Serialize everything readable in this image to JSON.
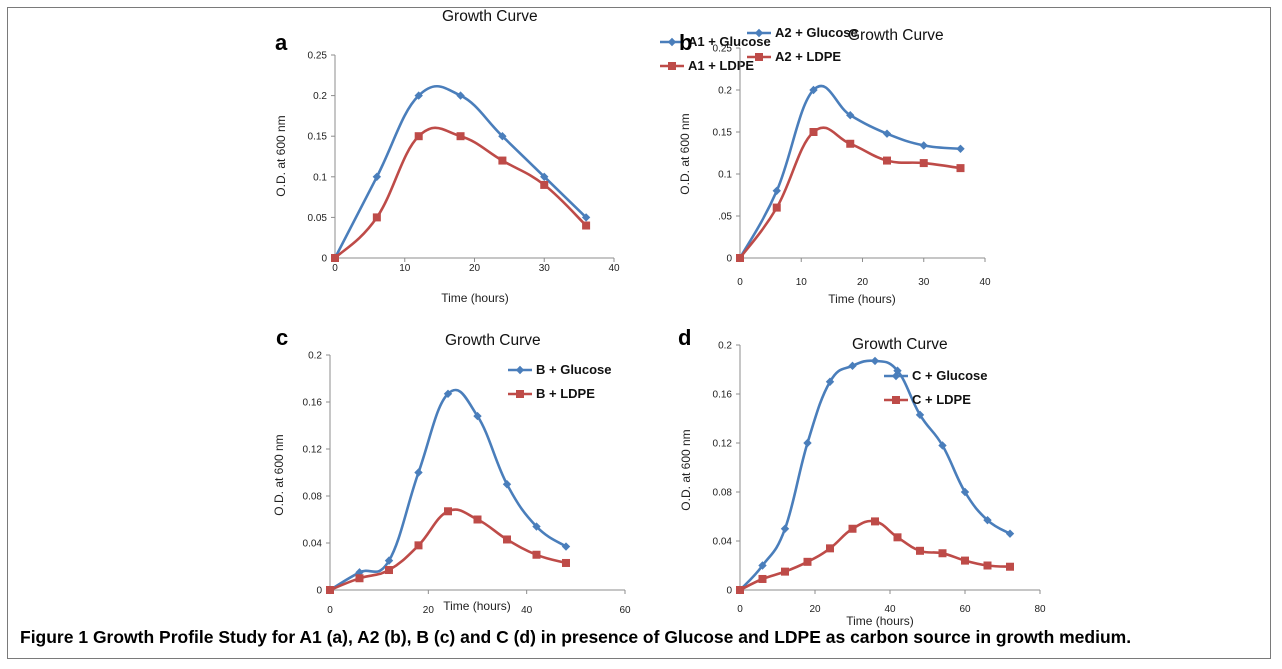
{
  "caption": {
    "label": "Figure 1",
    "text": " Growth Profile Study for A1 (a), A2 (b), B (c) and C (d) in presence of Glucose and LDPE as carbon source in growth medium."
  },
  "colors": {
    "glucose": "#4a7ebb",
    "ldpe": "#be4b48",
    "axis": "#8c8c8c"
  },
  "chart_data": [
    {
      "panel": "a",
      "type": "line",
      "title": "Growth Curve",
      "xlabel": "Time (hours)",
      "ylabel": "O.D. at 600 nm",
      "xlim": [
        0,
        40
      ],
      "ylim": [
        0,
        0.25
      ],
      "xticks": [
        0,
        10,
        20,
        30,
        40
      ],
      "xtick_labels": [
        "0",
        "10",
        "20",
        "30",
        "40"
      ],
      "yticks": [
        0,
        0.05,
        0.1,
        0.15,
        0.2,
        0.25
      ],
      "ytick_labels": [
        "0",
        "0.05",
        "0.1",
        "0.15",
        "0.2",
        "0.25"
      ],
      "legend": "top-right",
      "series": [
        {
          "name": "A1 + Glucose",
          "marker": "diamond",
          "x": [
            0,
            6,
            12,
            18,
            24,
            30,
            36
          ],
          "values": [
            0,
            0.1,
            0.2,
            0.2,
            0.15,
            0.1,
            0.05
          ]
        },
        {
          "name": "A1 + LDPE",
          "marker": "square",
          "x": [
            0,
            6,
            12,
            18,
            24,
            30,
            36
          ],
          "values": [
            0,
            0.05,
            0.15,
            0.15,
            0.12,
            0.09,
            0.04
          ]
        }
      ]
    },
    {
      "panel": "b",
      "type": "line",
      "title": "Growth Curve",
      "xlabel": "Time (hours)",
      "ylabel": "O.D. at 600 nm",
      "xlim": [
        0,
        40
      ],
      "ylim": [
        0,
        0.25
      ],
      "xticks": [
        0,
        10,
        20,
        30,
        40
      ],
      "xtick_labels": [
        "0",
        "10",
        "20",
        "30",
        "40"
      ],
      "yticks": [
        0,
        0.05,
        0.1,
        0.15,
        0.2,
        0.25
      ],
      "ytick_labels": [
        "0",
        ".05",
        "0.1",
        "0.15",
        "0.2",
        "0.25"
      ],
      "legend": "top-right",
      "series": [
        {
          "name": "A2 + Glucose",
          "marker": "diamond",
          "x": [
            0,
            6,
            12,
            18,
            24,
            30,
            36
          ],
          "values": [
            0,
            0.08,
            0.2,
            0.17,
            0.148,
            0.134,
            0.13
          ]
        },
        {
          "name": "A2 + LDPE",
          "marker": "square",
          "x": [
            0,
            6,
            12,
            18,
            24,
            30,
            36
          ],
          "values": [
            0,
            0.06,
            0.15,
            0.136,
            0.116,
            0.113,
            0.107
          ]
        }
      ]
    },
    {
      "panel": "c",
      "type": "line",
      "title": "Growth Curve",
      "xlabel": "Time (hours)",
      "ylabel": "O.D. at 600 nm",
      "xlim": [
        0,
        60
      ],
      "ylim": [
        0,
        0.2
      ],
      "xticks": [
        0,
        20,
        40,
        60
      ],
      "xtick_labels": [
        "0",
        "20",
        "40",
        "60"
      ],
      "yticks": [
        0,
        0.04,
        0.08,
        0.12,
        0.16,
        0.2
      ],
      "ytick_labels": [
        "0",
        "0.04",
        "0.08",
        "0.12",
        "0.16",
        "0.2"
      ],
      "legend": "top-right",
      "series": [
        {
          "name": "B + Glucose",
          "marker": "diamond",
          "x": [
            0,
            6,
            12,
            18,
            24,
            30,
            36,
            42,
            48
          ],
          "values": [
            0,
            0.015,
            0.025,
            0.1,
            0.167,
            0.148,
            0.09,
            0.054,
            0.037
          ]
        },
        {
          "name": "B + LDPE",
          "marker": "square",
          "x": [
            0,
            6,
            12,
            18,
            24,
            30,
            36,
            42,
            48
          ],
          "values": [
            0,
            0.01,
            0.017,
            0.038,
            0.067,
            0.06,
            0.043,
            0.03,
            0.023
          ]
        }
      ]
    },
    {
      "panel": "d",
      "type": "line",
      "title": "Growth Curve",
      "xlabel": "Time (hours)",
      "ylabel": "O.D. at 600 nm",
      "xlim": [
        0,
        80
      ],
      "ylim": [
        0,
        0.2
      ],
      "xticks": [
        0,
        20,
        40,
        60,
        80
      ],
      "xtick_labels": [
        "0",
        "20",
        "40",
        "60",
        "80"
      ],
      "yticks": [
        0,
        0.04,
        0.08,
        0.12,
        0.16,
        0.2
      ],
      "ytick_labels": [
        "0",
        "0.04",
        "0.08",
        "0.12",
        "0.16",
        "0.2"
      ],
      "legend": "top-right",
      "series": [
        {
          "name": "C + Glucose",
          "marker": "diamond",
          "x": [
            0,
            6,
            12,
            18,
            24,
            30,
            36,
            42,
            48,
            54,
            60,
            66,
            72
          ],
          "values": [
            0,
            0.02,
            0.05,
            0.12,
            0.17,
            0.183,
            0.187,
            0.179,
            0.143,
            0.118,
            0.08,
            0.057,
            0.046
          ]
        },
        {
          "name": "C + LDPE",
          "marker": "square",
          "x": [
            0,
            6,
            12,
            18,
            24,
            30,
            36,
            42,
            48,
            54,
            60,
            66,
            72
          ],
          "values": [
            0,
            0.009,
            0.015,
            0.023,
            0.034,
            0.05,
            0.056,
            0.043,
            0.032,
            0.03,
            0.024,
            0.02,
            0.019
          ]
        }
      ]
    }
  ]
}
